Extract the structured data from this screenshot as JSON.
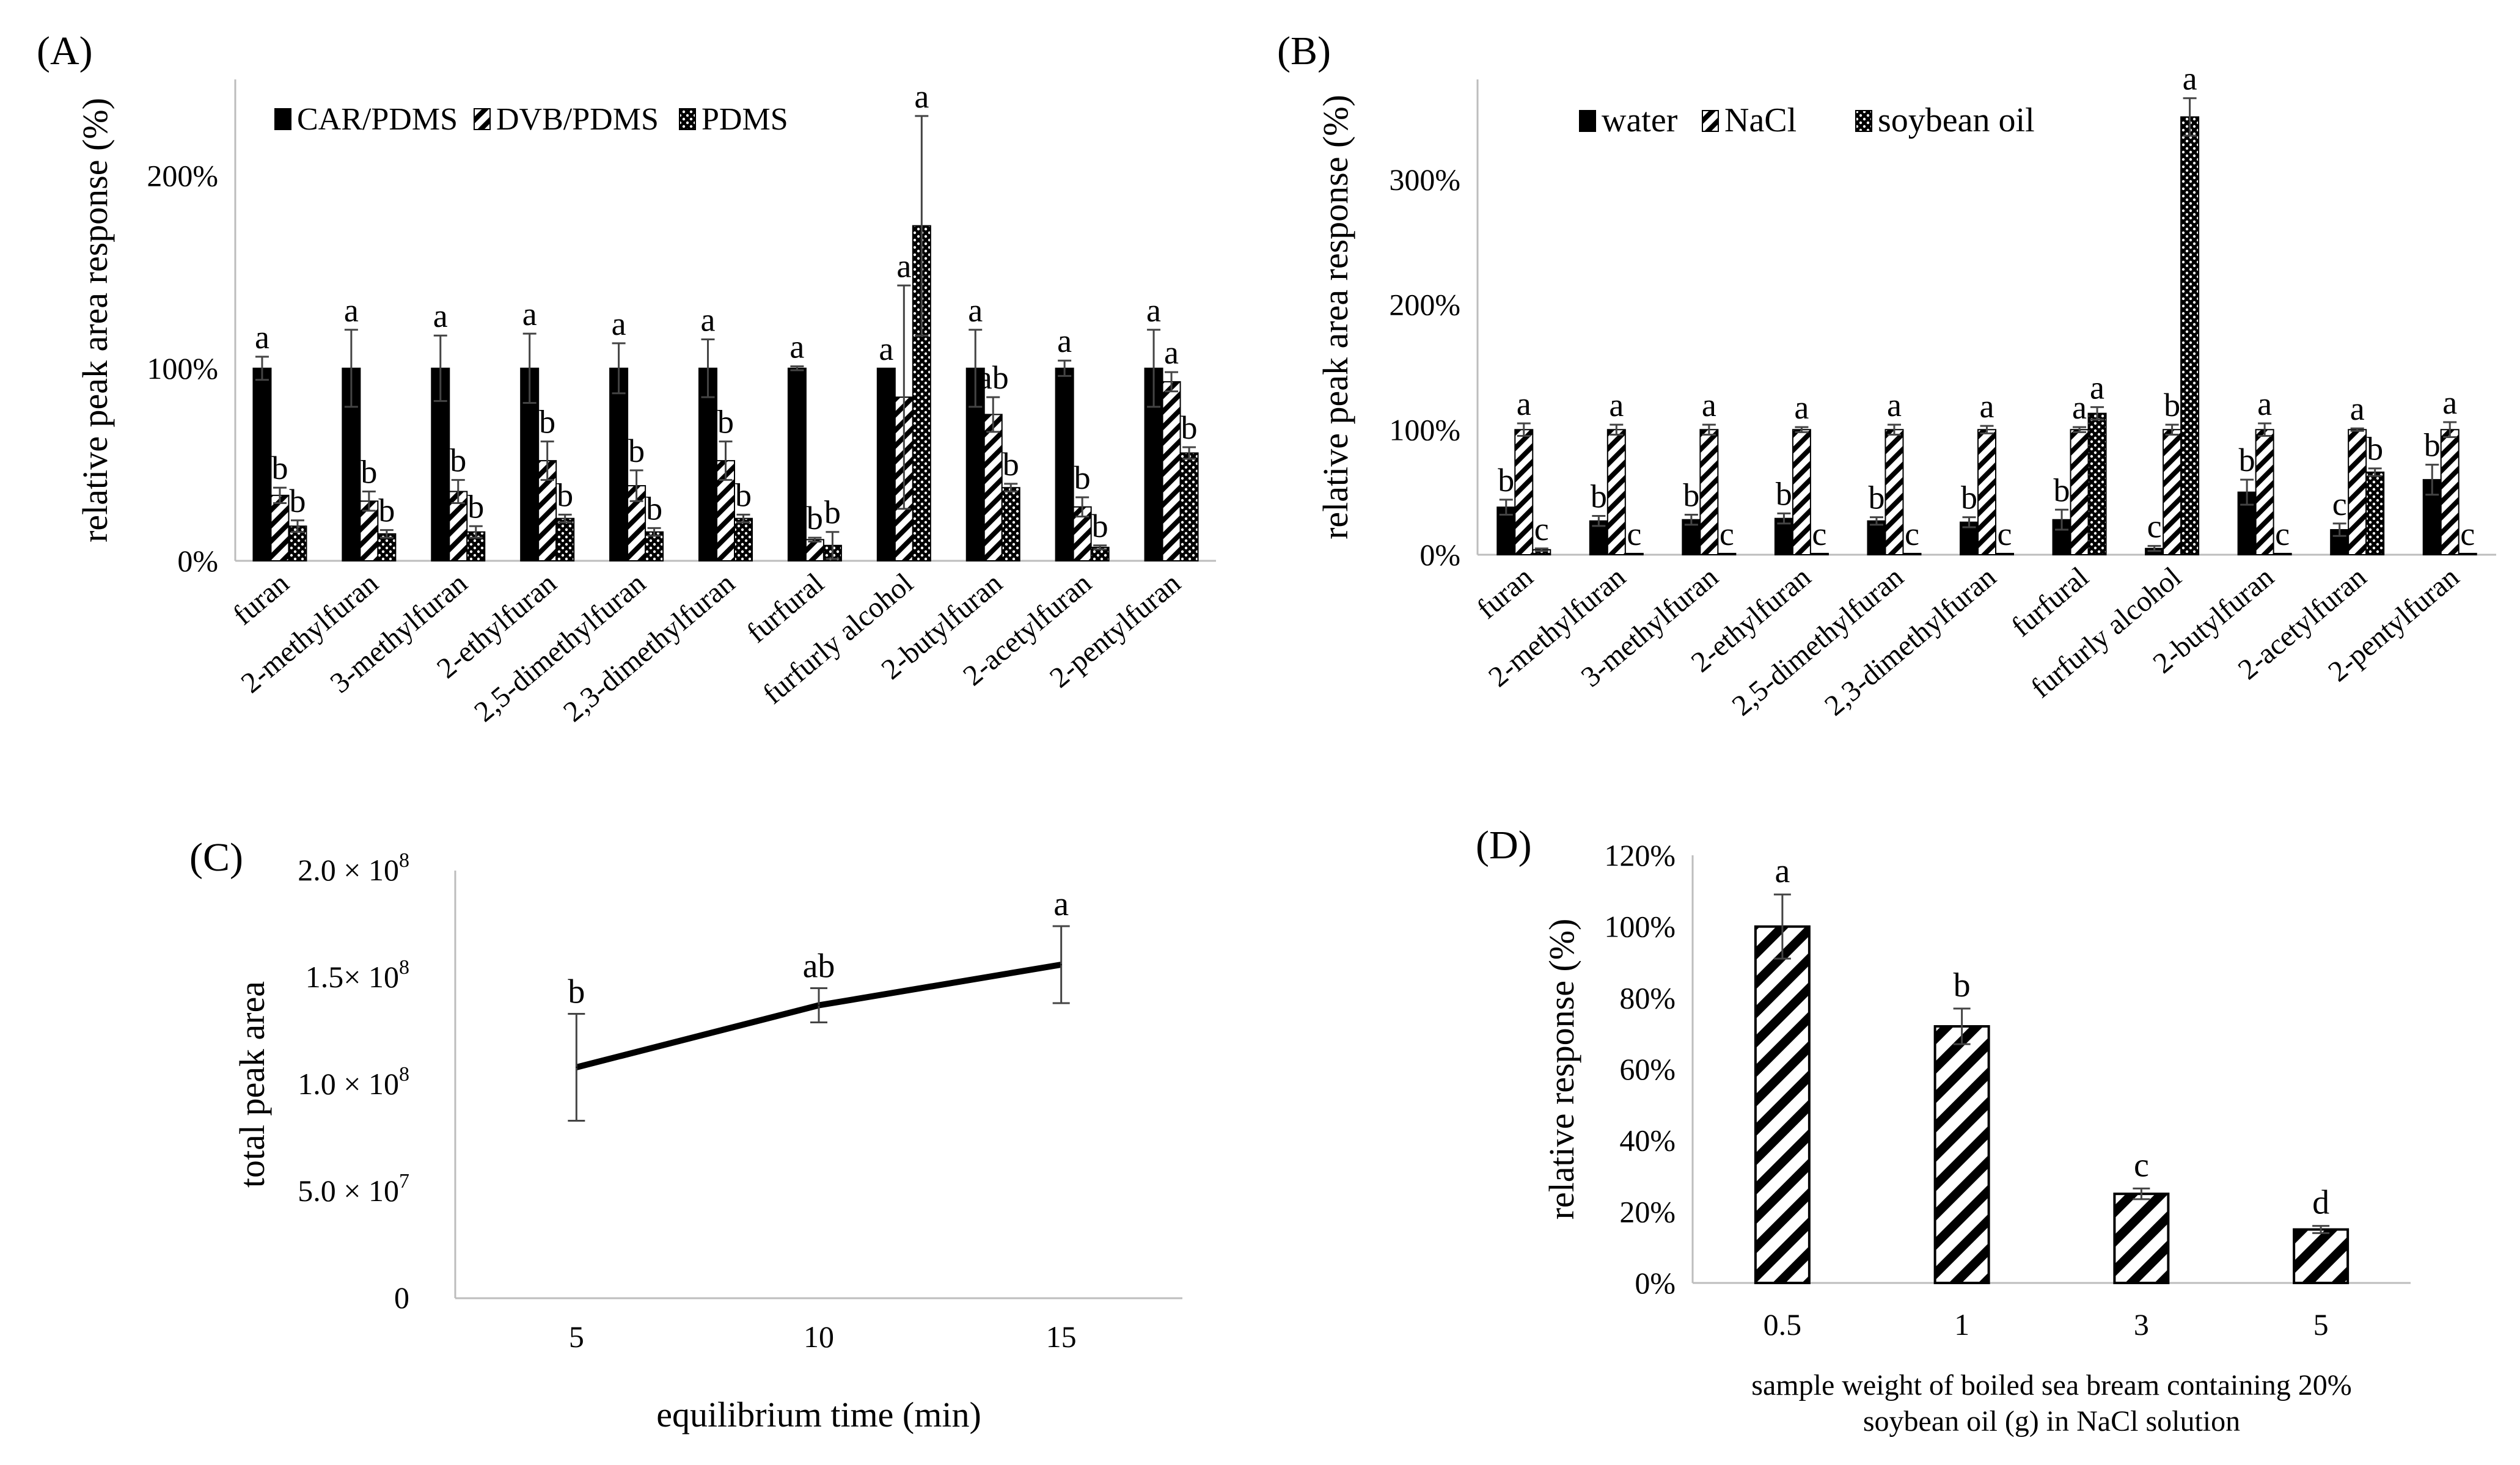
{
  "colors": {
    "ink": "#000000",
    "axis_gray": "#bdbdbd",
    "paper": "#ffffff"
  },
  "chart_data": [
    {
      "panel_label": "(A)",
      "type": "bar",
      "ylabel": "relative peak area  response (%)",
      "ylim": [
        0,
        250
      ],
      "yticks": [
        "0%",
        "100%",
        "200%"
      ],
      "ytick_values": [
        0,
        100,
        200
      ],
      "legend_position": "top-left",
      "categories": [
        "furan",
        "2-methylfuran",
        "3-methylfuran",
        "2-ethylfuran",
        "2,5-dimethylfuran",
        "2,3-dimethylfuran",
        "furfural",
        "furfurly alcohol",
        "2-butylfuran",
        "2-acetylfuran",
        "2-pentylfuran"
      ],
      "series": [
        {
          "name": "CAR/PDMS",
          "pattern": "solid",
          "values": [
            100,
            100,
            100,
            100,
            100,
            100,
            100,
            100,
            100,
            100,
            100
          ],
          "errors": [
            6,
            20,
            17,
            18,
            13,
            15,
            1,
            0,
            20,
            4,
            20
          ],
          "letters": [
            "a",
            "a",
            "a",
            "a",
            "a",
            "a",
            "a",
            "a",
            "a",
            "a",
            "a"
          ]
        },
        {
          "name": "DVB/PDMS",
          "pattern": "diagonal",
          "values": [
            34,
            31,
            36,
            52,
            39,
            52,
            11,
            85,
            76,
            28,
            93
          ],
          "errors": [
            4,
            5,
            6,
            10,
            8,
            10,
            1,
            58,
            9,
            5,
            5
          ],
          "letters": [
            "b",
            "b",
            "b",
            "b",
            "b",
            "b",
            "b",
            "a",
            "ab",
            "b",
            "a"
          ]
        },
        {
          "name": "PDMS",
          "pattern": "dotted",
          "values": [
            18,
            14,
            15,
            22,
            15,
            22,
            8,
            174,
            38,
            7,
            56
          ],
          "errors": [
            3,
            2,
            3,
            2,
            2,
            2,
            7,
            57,
            2,
            1,
            3
          ],
          "letters": [
            "b",
            "b",
            "b",
            "b",
            "b",
            "b",
            "b",
            "a",
            "b",
            "b",
            "b"
          ]
        }
      ]
    },
    {
      "panel_label": "(B)",
      "type": "bar",
      "ylabel": "relative peak area  response (%)",
      "ylim": [
        0,
        380
      ],
      "yticks": [
        "0%",
        "100%",
        "200%",
        "300%"
      ],
      "ytick_values": [
        0,
        100,
        200,
        300
      ],
      "legend_position": "top-left",
      "categories": [
        "furan",
        "2-methylfuran",
        "3-methylfuran",
        "2-ethylfuran",
        "2,5-dimethylfuran",
        "2,3-dimethylfuran",
        "furfural",
        "furfurly alcohol",
        "2-butylfuran",
        "2-acetylfuran",
        "2-pentylfuran"
      ],
      "series": [
        {
          "name": "water",
          "pattern": "solid",
          "values": [
            38,
            27,
            28,
            29,
            27,
            26,
            28,
            5,
            50,
            20,
            60
          ],
          "errors": [
            6,
            4,
            4,
            4,
            3,
            4,
            8,
            2,
            10,
            5,
            12
          ],
          "letters": [
            "b",
            "b",
            "b",
            "b",
            "b",
            "b",
            "b",
            "c",
            "b",
            "c",
            "b"
          ]
        },
        {
          "name": "NaCl",
          "pattern": "diagonal",
          "values": [
            100,
            100,
            100,
            100,
            100,
            100,
            100,
            100,
            100,
            100,
            100
          ],
          "errors": [
            5,
            4,
            4,
            2,
            4,
            3,
            2,
            4,
            5,
            1,
            6
          ],
          "letters": [
            "a",
            "a",
            "a",
            "a",
            "a",
            "a",
            "a",
            "b",
            "a",
            "a",
            "a"
          ]
        },
        {
          "name": "soybean oil",
          "pattern": "dotted",
          "values": [
            4,
            1,
            1,
            1,
            1,
            1,
            113,
            350,
            1,
            66,
            1
          ],
          "errors": [
            1,
            0,
            0,
            0,
            0,
            0,
            5,
            15,
            0,
            3,
            0
          ],
          "letters": [
            "c",
            "c",
            "c",
            "c",
            "c",
            "c",
            "a",
            "a",
            "c",
            "b",
            "c"
          ]
        }
      ]
    },
    {
      "panel_label": "(C)",
      "type": "line",
      "xlabel": "equilibrium time (min)",
      "ylabel": "total peak area",
      "ylim": [
        0,
        200000000
      ],
      "yticks": [
        "0",
        "5.0 × 10",
        "1.0 × 10",
        "1.5× 10",
        "2.0 × 10"
      ],
      "ytick_exponents": [
        "",
        "7",
        "8",
        "8",
        "8"
      ],
      "ytick_values": [
        0,
        50000000,
        100000000,
        150000000,
        200000000
      ],
      "categories": [
        "5",
        "10",
        "15"
      ],
      "values": [
        108000000,
        137000000,
        156000000
      ],
      "errors": [
        25000000,
        8000000,
        18000000
      ],
      "letters": [
        "b",
        "ab",
        "a"
      ]
    },
    {
      "panel_label": "(D)",
      "type": "bar",
      "xlabel": [
        "sample weight of boiled sea bream containing 20%",
        "soybean oil (g) in NaCl solution"
      ],
      "ylabel": "relative response (%)",
      "ylim": [
        0,
        120
      ],
      "yticks": [
        "0%",
        "20%",
        "40%",
        "60%",
        "80%",
        "100%",
        "120%"
      ],
      "ytick_values": [
        0,
        20,
        40,
        60,
        80,
        100,
        120
      ],
      "categories": [
        "0.5",
        "1",
        "3",
        "5"
      ],
      "values": [
        100,
        72,
        25,
        15
      ],
      "errors": [
        9,
        5,
        1.5,
        1
      ],
      "letters": [
        "a",
        "b",
        "c",
        "d"
      ],
      "pattern": "wide-diagonal"
    }
  ]
}
